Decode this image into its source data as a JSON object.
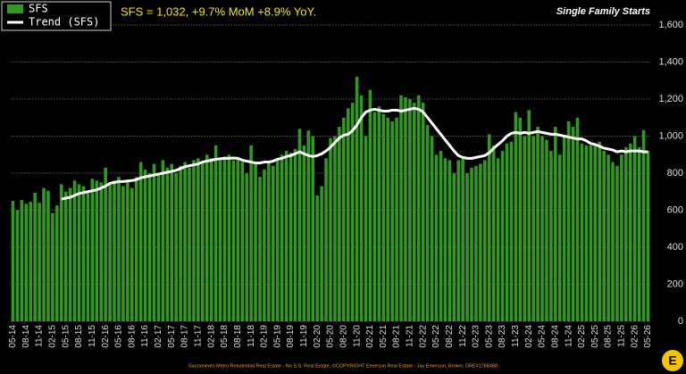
{
  "chart_data": {
    "type": "bar",
    "title": "Single Family Starts",
    "subtitle": "SFS = 1,032, +9.7% MoM +8.9% YoY.",
    "source": "Sacramento Metro Residential Real Estate - No S.S. Real Estate, ©COPYRIGHT Emerson Real Estate - Jay Emerson, Broker, DRE#1788488",
    "categories": [
      "05-14",
      null,
      null,
      "08-14",
      null,
      null,
      "11-14",
      null,
      null,
      "02-15",
      null,
      null,
      "05-15",
      null,
      null,
      "08-15",
      null,
      null,
      "11-15",
      null,
      null,
      "02-16",
      null,
      null,
      "05-16",
      null,
      null,
      "08-16",
      null,
      null,
      "11-16",
      null,
      null,
      "02-17",
      null,
      null,
      "05-17",
      null,
      null,
      "08-17",
      null,
      null,
      "11-17",
      null,
      null,
      "02-18",
      null,
      null,
      "05-18",
      null,
      null,
      "08-18",
      null,
      null,
      "11-18",
      null,
      null,
      "02-19",
      null,
      null,
      "05-19",
      null,
      null,
      "08-19",
      null,
      null,
      "11-19",
      null,
      null,
      "02-20",
      null,
      null,
      "05-20",
      null,
      null,
      "08-20",
      null,
      null,
      "11-20",
      null,
      null,
      "02-21",
      null,
      null,
      "05-21",
      null,
      null,
      "08-21",
      null,
      null,
      "11-21",
      null,
      null,
      "02-22",
      null,
      null,
      "05-22",
      null,
      null,
      "08-22",
      null,
      null,
      "11-22",
      null,
      null,
      "02-23",
      null,
      null,
      "05-23",
      null,
      null,
      "08-23",
      null,
      null,
      "11-23",
      null,
      null,
      "02-24",
      null,
      null,
      "05-24",
      null,
      null,
      "08-24",
      null,
      null,
      "11-24",
      null,
      null,
      "02-25",
      null,
      null,
      "05-25",
      null,
      null,
      "08-25",
      null,
      null,
      "11-25",
      null,
      null,
      "02-26",
      null,
      null,
      "05-26"
    ],
    "series": [
      {
        "name": "SFS",
        "type": "bar",
        "color": "#2f9a1f",
        "values": [
          650,
          600,
          655,
          635,
          645,
          695,
          640,
          720,
          705,
          585,
          625,
          740,
          700,
          720,
          760,
          740,
          730,
          700,
          770,
          760,
          750,
          830,
          740,
          760,
          780,
          730,
          760,
          720,
          780,
          860,
          820,
          800,
          850,
          800,
          870,
          830,
          850,
          800,
          840,
          860,
          830,
          870,
          880,
          860,
          900,
          880,
          950,
          870,
          890,
          900,
          870,
          880,
          860,
          800,
          950,
          850,
          780,
          820,
          860,
          840,
          880,
          900,
          920,
          910,
          930,
          1040,
          950,
          1030,
          1000,
          680,
          730,
          880,
          990,
          1000,
          1050,
          1100,
          1150,
          1180,
          1320,
          1220,
          1000,
          1250,
          1130,
          1160,
          1120,
          1100,
          1080,
          1100,
          1220,
          1210,
          1200,
          1180,
          1220,
          1180,
          1060,
          1000,
          900,
          920,
          880,
          870,
          800,
          870,
          880,
          800,
          830,
          840,
          850,
          870,
          1010,
          950,
          880,
          920,
          960,
          970,
          1130,
          1100,
          1000,
          1140,
          1000,
          1050,
          1000,
          980,
          920,
          1050,
          900,
          1000,
          1080,
          1050,
          1100,
          960,
          950,
          950,
          950,
          970,
          920,
          900,
          860,
          840,
          900,
          940,
          960,
          1000,
          940,
          1032,
          920
        ]
      },
      {
        "name": "Trend (SFS)",
        "type": "line",
        "color": "#ffffff",
        "values": [
          null,
          null,
          null,
          null,
          null,
          null,
          null,
          null,
          null,
          null,
          null,
          660,
          665,
          670,
          680,
          690,
          695,
          700,
          705,
          710,
          720,
          730,
          745,
          750,
          755,
          755,
          758,
          760,
          765,
          775,
          780,
          785,
          790,
          795,
          800,
          805,
          810,
          815,
          825,
          835,
          840,
          845,
          850,
          860,
          865,
          870,
          875,
          878,
          880,
          880,
          882,
          880,
          870,
          865,
          860,
          855,
          855,
          860,
          860,
          865,
          875,
          880,
          890,
          895,
          905,
          915,
          905,
          895,
          890,
          895,
          905,
          920,
          940,
          965,
          990,
          1005,
          1010,
          1030,
          1060,
          1100,
          1130,
          1140,
          1145,
          1140,
          1135,
          1135,
          1140,
          1140,
          1135,
          1140,
          1145,
          1150,
          1145,
          1130,
          1100,
          1070,
          1040,
          1010,
          980,
          950,
          920,
          895,
          885,
          880,
          880,
          885,
          890,
          895,
          910,
          935,
          955,
          975,
          1000,
          1015,
          1020,
          1015,
          1020,
          1015,
          1020,
          1025,
          1020,
          1015,
          1010,
          1010,
          1005,
          1000,
          995,
          990,
          985,
          985,
          975,
          960,
          955,
          945,
          935,
          930,
          925,
          915,
          920,
          915,
          920,
          920,
          920,
          915,
          915
        ]
      }
    ],
    "ylim": [
      0,
      1600
    ],
    "yticks": [
      0,
      200,
      400,
      600,
      800,
      {
        "value": 1000,
        "label": "1,000"
      },
      {
        "value": 1200,
        "label": "1,200"
      },
      {
        "value": 1400,
        "label": "1,400"
      },
      {
        "value": 1600,
        "label": "1,600"
      }
    ],
    "grid": true
  }
}
